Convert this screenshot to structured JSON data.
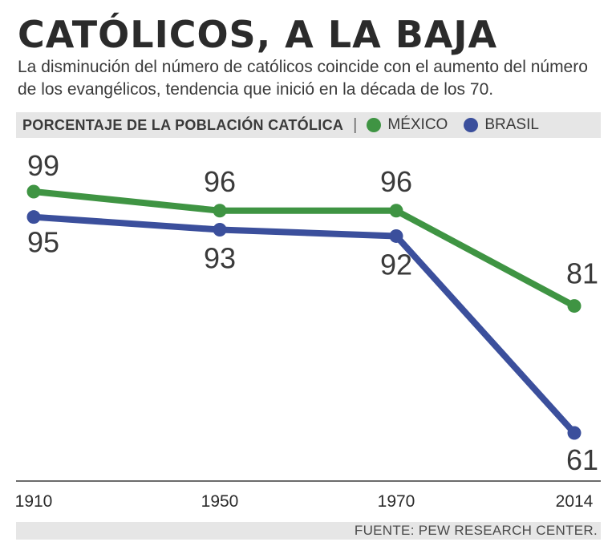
{
  "header": {
    "title": "CATÓLICOS, A LA BAJA",
    "subtitle": "La disminución del número de católicos coincide con el aumento del número de los evangélicos, tendencia que inició en la década de los 70."
  },
  "legend": {
    "title": "PORCENTAJE DE LA POBLACIÓN CATÓLICA",
    "separator": "|",
    "items": [
      {
        "label": "MÉXICO",
        "color": "#3f9443"
      },
      {
        "label": "BRASIL",
        "color": "#3b4f9c"
      }
    ]
  },
  "source": "FUENTE: PEW RESEARCH CENTER.",
  "chart_data": {
    "type": "line",
    "title": "CATÓLICOS, A LA BAJA",
    "categories": [
      "1910",
      "1950",
      "1970",
      "2014"
    ],
    "series": [
      {
        "name": "MÉXICO",
        "color": "#3f9443",
        "values": [
          99,
          96,
          96,
          81
        ]
      },
      {
        "name": "BRASIL",
        "color": "#3b4f9c",
        "values": [
          95,
          93,
          92,
          61
        ]
      }
    ],
    "ylabel": "Porcentaje de la población católica",
    "xlabel": "",
    "ylim": [
      61,
      99
    ],
    "grid": false
  }
}
